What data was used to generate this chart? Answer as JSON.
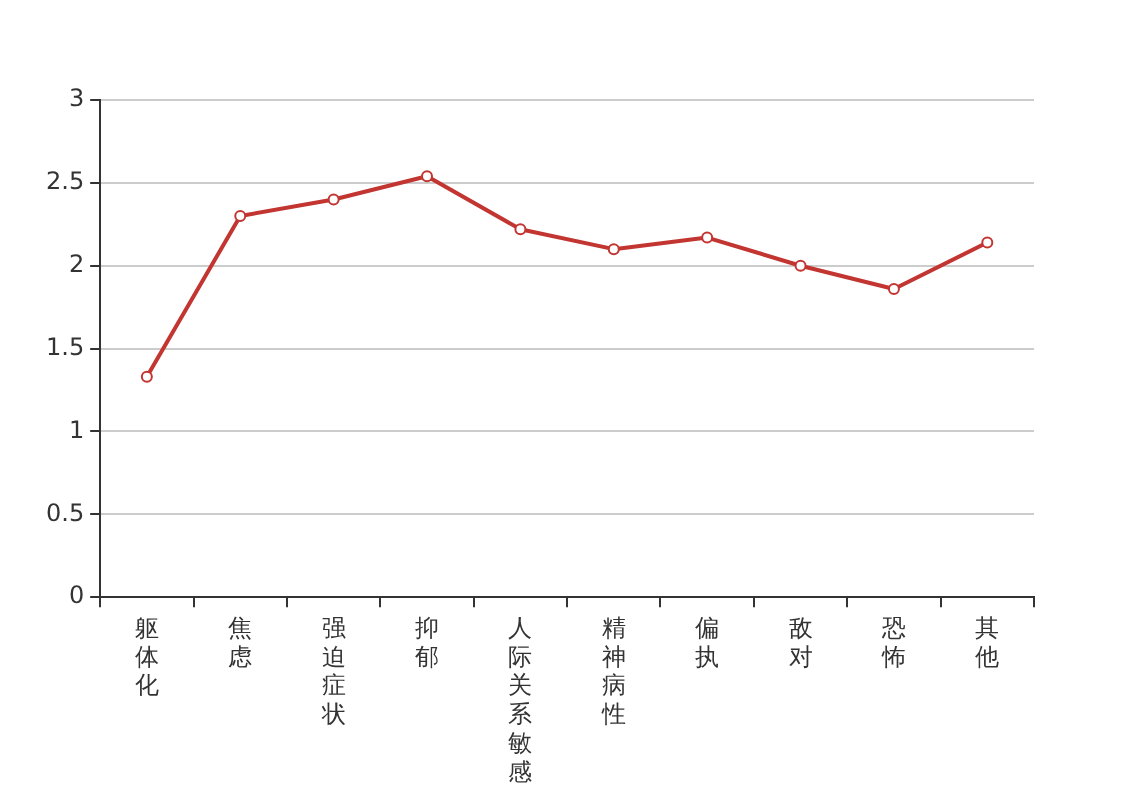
{
  "chart_data": {
    "type": "line",
    "categories": [
      "躯体化",
      "焦虑",
      "强迫症状",
      "抑郁",
      "人际关系敏感",
      "精神病性",
      "偏执",
      "敌对",
      "恐怖",
      "其他"
    ],
    "series": [
      {
        "color": "#c23531",
        "values": [
          1.33,
          2.3,
          2.4,
          2.54,
          2.22,
          2.1,
          2.17,
          2.0,
          1.86,
          2.14
        ]
      }
    ],
    "ylim": [
      0,
      3
    ],
    "yticks": [
      0,
      0.5,
      1,
      1.5,
      2,
      2.5,
      3
    ],
    "grid": "y",
    "legend": false,
    "marker": "circle",
    "line_style": "solid"
  }
}
